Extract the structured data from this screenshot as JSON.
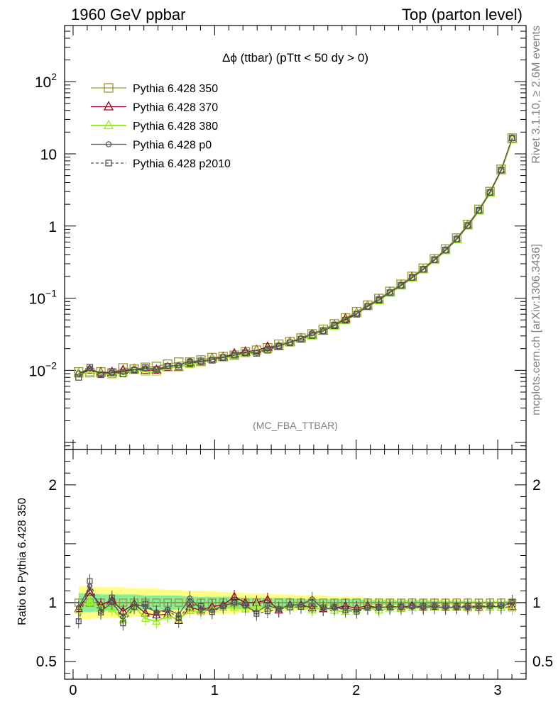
{
  "header": {
    "left": "1960 GeV ppbar",
    "right": "Top (parton level)"
  },
  "side": {
    "rivet": "Rivet 3.1.10, ≥ 2.6M events",
    "mcplots": "mcplots.cern.ch [arXiv:1306.3436]"
  },
  "chart_data": {
    "type": "line",
    "title": "Δϕ (ttbar) (pTtt < 50 dy > 0)",
    "watermark": "(MC_FBA_TTBAR)",
    "xlim": [
      -0.06,
      3.2
    ],
    "yscale": "log",
    "ylim": [
      0.0008,
      600
    ],
    "y_ticks": [
      {
        "v": 0.01,
        "base": "10",
        "exp": "−2"
      },
      {
        "v": 0.1,
        "base": "10",
        "exp": "−1"
      },
      {
        "v": 1,
        "base": "1",
        "exp": ""
      },
      {
        "v": 10,
        "base": "10",
        "exp": ""
      },
      {
        "v": 100,
        "base": "10",
        "exp": "2"
      }
    ],
    "x_ticks": [
      "0",
      "1",
      "2",
      "3"
    ],
    "legend_position": "top-left",
    "x": [
      0.039,
      0.118,
      0.196,
      0.275,
      0.353,
      0.432,
      0.511,
      0.589,
      0.668,
      0.746,
      0.825,
      0.903,
      0.982,
      1.06,
      1.139,
      1.217,
      1.296,
      1.374,
      1.453,
      1.532,
      1.61,
      1.689,
      1.767,
      1.846,
      1.924,
      2.003,
      2.081,
      2.16,
      2.238,
      2.317,
      2.395,
      2.474,
      2.553,
      2.631,
      2.71,
      2.788,
      2.867,
      2.945,
      3.024,
      3.102
    ],
    "series": [
      {
        "name": "Pythia 6.428 350",
        "color": "#999933",
        "marker": "square-open",
        "dash": false,
        "values": [
          0.0095,
          0.0093,
          0.0095,
          0.0092,
          0.0108,
          0.0104,
          0.011,
          0.0113,
          0.0122,
          0.013,
          0.013,
          0.0139,
          0.015,
          0.0155,
          0.0162,
          0.018,
          0.019,
          0.0205,
          0.023,
          0.025,
          0.028,
          0.032,
          0.037,
          0.044,
          0.053,
          0.065,
          0.08,
          0.099,
          0.124,
          0.156,
          0.2,
          0.26,
          0.35,
          0.48,
          0.68,
          1.05,
          1.7,
          3.0,
          6.1,
          16.5
        ]
      },
      {
        "name": "Pythia 6.428 370",
        "color": "#990022",
        "marker": "triangle-open",
        "dash": false,
        "values": [
          0.009,
          0.0101,
          0.0093,
          0.0094,
          0.01,
          0.0103,
          0.01,
          0.0101,
          0.011,
          0.011,
          0.0125,
          0.013,
          0.0145,
          0.0152,
          0.017,
          0.018,
          0.019,
          0.021,
          0.0215,
          0.0245,
          0.0275,
          0.0305,
          0.035,
          0.042,
          0.0515,
          0.062,
          0.078,
          0.0945,
          0.12,
          0.15,
          0.195,
          0.25,
          0.338,
          0.46,
          0.655,
          1.01,
          1.63,
          2.88,
          5.85,
          15.9
        ]
      },
      {
        "name": "Pythia 6.428 380",
        "color": "#99ee22",
        "marker": "triangle-open",
        "dash": false,
        "values": [
          0.0089,
          0.0094,
          0.009,
          0.0087,
          0.0092,
          0.0101,
          0.0095,
          0.0095,
          0.0108,
          0.0112,
          0.0121,
          0.0128,
          0.0142,
          0.0148,
          0.0155,
          0.017,
          0.0185,
          0.0195,
          0.022,
          0.024,
          0.027,
          0.03,
          0.0355,
          0.041,
          0.049,
          0.061,
          0.0765,
          0.0925,
          0.118,
          0.148,
          0.191,
          0.248,
          0.335,
          0.458,
          0.65,
          1.0,
          1.62,
          2.88,
          5.85,
          15.7
        ]
      },
      {
        "name": "Pythia 6.428 p0",
        "color": "#555555",
        "marker": "circle-open",
        "dash": false,
        "values": [
          0.0091,
          0.0106,
          0.0088,
          0.0092,
          0.0095,
          0.0103,
          0.0106,
          0.0104,
          0.0115,
          0.0117,
          0.0135,
          0.0131,
          0.014,
          0.0151,
          0.0162,
          0.0175,
          0.0175,
          0.02,
          0.0218,
          0.0245,
          0.0275,
          0.033,
          0.035,
          0.042,
          0.0505,
          0.061,
          0.0768,
          0.0945,
          0.12,
          0.15,
          0.192,
          0.25,
          0.338,
          0.46,
          0.655,
          1.01,
          1.64,
          2.9,
          5.9,
          16.5
        ]
      },
      {
        "name": "Pythia 6.428 p2010",
        "color": "#555555",
        "marker": "square-open",
        "dash": true,
        "values": [
          0.008,
          0.011,
          0.0087,
          0.0096,
          0.0089,
          0.01,
          0.0109,
          0.0103,
          0.0114,
          0.0113,
          0.0128,
          0.0135,
          0.0138,
          0.015,
          0.0162,
          0.0176,
          0.0172,
          0.019,
          0.0217,
          0.024,
          0.027,
          0.031,
          0.0355,
          0.0425,
          0.0495,
          0.06,
          0.0765,
          0.0955,
          0.119,
          0.151,
          0.194,
          0.252,
          0.342,
          0.465,
          0.66,
          1.02,
          1.65,
          2.92,
          5.95,
          16.6
        ]
      }
    ],
    "ratio": {
      "ylabel": "Ratio to Pythia 6.428 350",
      "ylim": [
        0.35,
        2.3
      ],
      "y_ticks": [
        "0.5",
        "1",
        "2"
      ],
      "band_green": [
        0.08,
        0.08,
        0.07,
        0.07,
        0.07,
        0.07,
        0.06,
        0.06,
        0.06,
        0.06,
        0.05,
        0.05,
        0.05,
        0.05,
        0.05,
        0.04,
        0.04,
        0.04,
        0.04,
        0.04,
        0.03,
        0.03,
        0.03,
        0.03,
        0.03,
        0.03,
        0.02,
        0.02,
        0.02,
        0.02,
        0.02,
        0.02,
        0.015,
        0.015,
        0.015,
        0.01,
        0.01,
        0.01,
        0.01,
        0.01
      ],
      "band_yellow": [
        0.14,
        0.14,
        0.13,
        0.13,
        0.13,
        0.12,
        0.12,
        0.12,
        0.11,
        0.11,
        0.1,
        0.1,
        0.1,
        0.09,
        0.09,
        0.08,
        0.08,
        0.08,
        0.07,
        0.07,
        0.06,
        0.06,
        0.06,
        0.05,
        0.05,
        0.05,
        0.04,
        0.04,
        0.04,
        0.03,
        0.03,
        0.03,
        0.03,
        0.025,
        0.025,
        0.02,
        0.02,
        0.02,
        0.02,
        0.02
      ]
    }
  }
}
